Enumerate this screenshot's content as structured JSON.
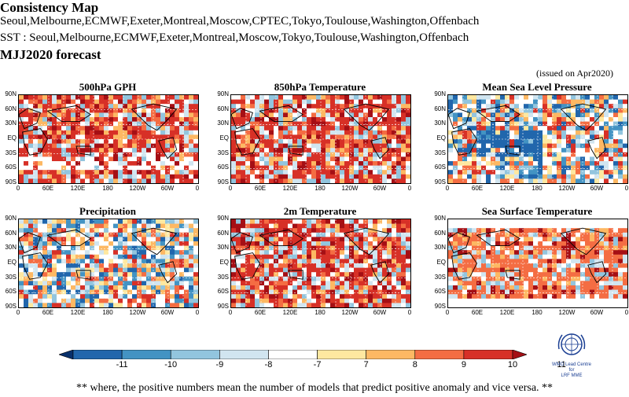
{
  "header": {
    "title": "Consistency Map",
    "models_line": "Seoul,Melbourne,ECMWF,Exeter,Montreal,Moscow,CPTEC,Tokyo,Toulouse,Washington,Offenbach",
    "sst_line": "SST : Seoul,Melbourne,ECMWF,Exeter,Montreal,Moscow,Tokyo,Toulouse,Washington,Offenbach",
    "forecast": "MJJ2020 forecast",
    "issued": "(issued on Apr2020)"
  },
  "axes": {
    "lat_ticks": [
      "90N",
      "60N",
      "30N",
      "EQ",
      "30S",
      "60S",
      "90S"
    ],
    "lon_ticks": [
      "0",
      "60E",
      "120E",
      "180",
      "120W",
      "60W",
      "0"
    ]
  },
  "chart_data": [
    {
      "type": "heatmap",
      "title": "500hPa GPH",
      "dominant_sign": "positive",
      "dominant_level": 10
    },
    {
      "type": "heatmap",
      "title": "850hPa Temperature",
      "dominant_sign": "positive",
      "dominant_level": 10
    },
    {
      "type": "heatmap",
      "title": "Mean Sea Level Pressure",
      "dominant_sign": "mixed",
      "dominant_level": 0
    },
    {
      "type": "heatmap",
      "title": "Precipitation",
      "dominant_sign": "mixed",
      "dominant_level": 0
    },
    {
      "type": "heatmap",
      "title": "2m Temperature",
      "dominant_sign": "positive",
      "dominant_level": 10
    },
    {
      "type": "heatmap",
      "title": "Sea Surface Temperature",
      "dominant_sign": "positive",
      "dominant_level": 9
    }
  ],
  "colorbar": {
    "labels": [
      "-11",
      "-10",
      "-9",
      "-8",
      "-7",
      "7",
      "8",
      "9",
      "10",
      "11"
    ],
    "colors": [
      "#08306b",
      "#2166ac",
      "#4393c3",
      "#92c5de",
      "#d1e5f0",
      "#ffffff",
      "#fee8a0",
      "#fdb863",
      "#f46d43",
      "#d73027",
      "#a50f15"
    ]
  },
  "footnote": "** where, the positive numbers mean the number of models that predict positive anomaly and vice versa. **",
  "logo": {
    "text_line1": "WMO Lead Centre for",
    "text_line2": "LRF MME"
  }
}
